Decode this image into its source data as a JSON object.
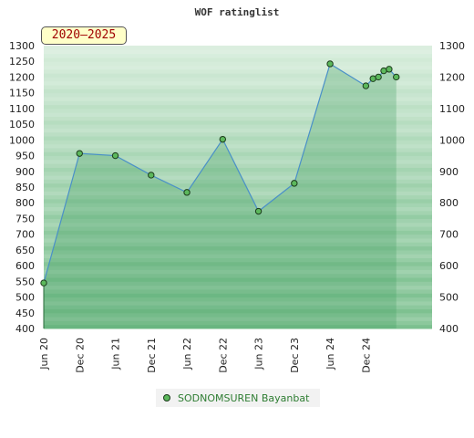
{
  "badge": "2020–2025",
  "legend_label": "SODNOMSUREN Bayanbat",
  "colors": {
    "line": "#4a90c8",
    "marker_fill": "#5cb85c",
    "marker_stroke": "#1b3b1b",
    "band_light": "#e8f5ea",
    "band_dark": "#7cc08f",
    "badge_text": "#a00000"
  },
  "chart_data": {
    "type": "area",
    "title": "WOF ratinglist",
    "xlabel": "",
    "ylabel": "",
    "ylim": [
      400,
      1300
    ],
    "yticks": [
      400,
      450,
      500,
      550,
      600,
      650,
      700,
      750,
      800,
      850,
      900,
      950,
      1000,
      1050,
      1100,
      1150,
      1200,
      1250,
      1300
    ],
    "yticks_right": [
      400,
      500,
      600,
      700,
      800,
      900,
      1000,
      1100,
      1200,
      1300
    ],
    "xticks": [
      "Jun 20",
      "Dec 20",
      "Jun 21",
      "Dec 21",
      "Jun 22",
      "Dec 22",
      "Jun 23",
      "Dec 23",
      "Jun 24",
      "Dec 24"
    ],
    "xlim": [
      0,
      10.85
    ],
    "legend": "bottom-center",
    "series": [
      {
        "name": "SODNOMSUREN Bayanbat",
        "points": [
          {
            "x": 0,
            "y": 545
          },
          {
            "x": 1,
            "y": 957
          },
          {
            "x": 2,
            "y": 950
          },
          {
            "x": 3,
            "y": 888
          },
          {
            "x": 4,
            "y": 833
          },
          {
            "x": 5,
            "y": 1002
          },
          {
            "x": 6,
            "y": 773
          },
          {
            "x": 7,
            "y": 862
          },
          {
            "x": 8,
            "y": 1242
          },
          {
            "x": 9,
            "y": 1172
          },
          {
            "x": 9.2,
            "y": 1195
          },
          {
            "x": 9.35,
            "y": 1200
          },
          {
            "x": 9.5,
            "y": 1220
          },
          {
            "x": 9.65,
            "y": 1225
          },
          {
            "x": 9.85,
            "y": 1200
          }
        ]
      }
    ]
  }
}
